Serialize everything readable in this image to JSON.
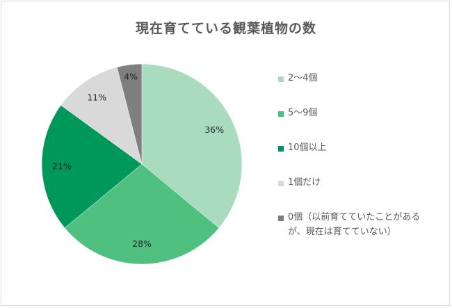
{
  "chart_data": {
    "type": "pie",
    "title": "現在育てている観葉植物の数",
    "slices": [
      {
        "label": "2～4個",
        "value": 36,
        "display": "36%",
        "color": "#a9dcbf"
      },
      {
        "label": "5～9個",
        "value": 28,
        "display": "28%",
        "color": "#4fc080"
      },
      {
        "label": "10個以上",
        "value": 21,
        "display": "21%",
        "color": "#00975a"
      },
      {
        "label": "1個だけ",
        "value": 11,
        "display": "11%",
        "color": "#d9d9d9"
      },
      {
        "label": "0個（以前育てていたことがあるが、現在は育てていない）",
        "value": 4,
        "display": "4%",
        "color": "#7f7f7f"
      }
    ],
    "start_angle": "12 o'clock",
    "direction": "clockwise",
    "legend_position": "right"
  }
}
